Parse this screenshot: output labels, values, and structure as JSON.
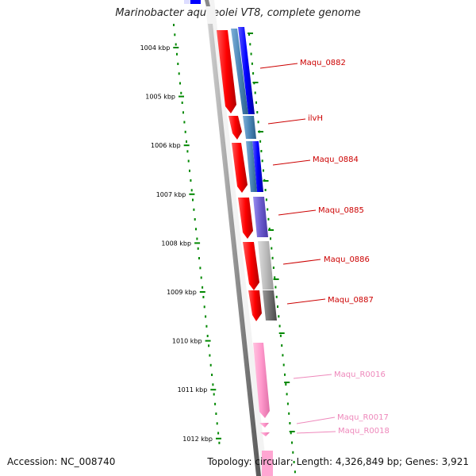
{
  "title": "Marinobacter aquaeolei VT8, complete genome",
  "footer": {
    "accession": "Accession: NC_008740",
    "topology": "Topology: circular; Length: 4,326,849 bp; Genes: 3,921"
  },
  "axis_labels": [
    {
      "text": "1004 kbp",
      "kbp": 1004
    },
    {
      "text": "1005 kbp",
      "kbp": 1005
    },
    {
      "text": "1006 kbp",
      "kbp": 1006
    },
    {
      "text": "1007 kbp",
      "kbp": 1007
    },
    {
      "text": "1008 kbp",
      "kbp": 1008
    },
    {
      "text": "1009 kbp",
      "kbp": 1009
    },
    {
      "text": "1010 kbp",
      "kbp": 1010
    },
    {
      "text": "1011 kbp",
      "kbp": 1011
    },
    {
      "text": "1012 kbp",
      "kbp": 1012
    }
  ],
  "gene_labels": [
    {
      "text": "Maqu_0882",
      "color": "#cc0000"
    },
    {
      "text": "ilvH",
      "color": "#cc0000"
    },
    {
      "text": "Maqu_0884",
      "color": "#cc0000"
    },
    {
      "text": "Maqu_0885",
      "color": "#cc0000"
    },
    {
      "text": "Maqu_0886",
      "color": "#cc0000"
    },
    {
      "text": "Maqu_0887",
      "color": "#cc0000"
    },
    {
      "text": "Maqu_R0016",
      "color": "#ee88bb"
    },
    {
      "text": "Maqu_R0017",
      "color": "#ee88bb"
    },
    {
      "text": "Maqu_R0018",
      "color": "#ee88bb"
    }
  ],
  "colors": {
    "gene": "#ff0000",
    "rna": "#ff99cc",
    "ticks": "#008800",
    "backbone": "#888888"
  }
}
